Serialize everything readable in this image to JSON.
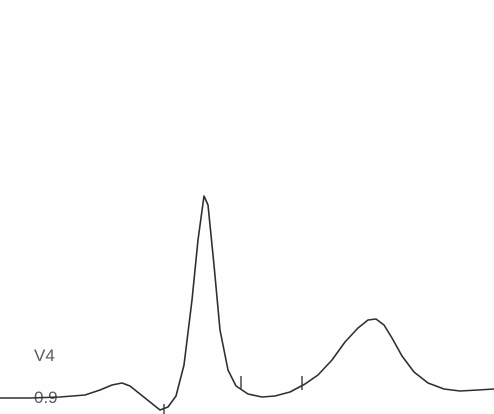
{
  "ecg": {
    "lead": "V4",
    "value": "0.9"
  },
  "colors": {
    "background": "#fefefe",
    "trace": "#2f2f2f",
    "label": "#5a5a5a"
  }
}
